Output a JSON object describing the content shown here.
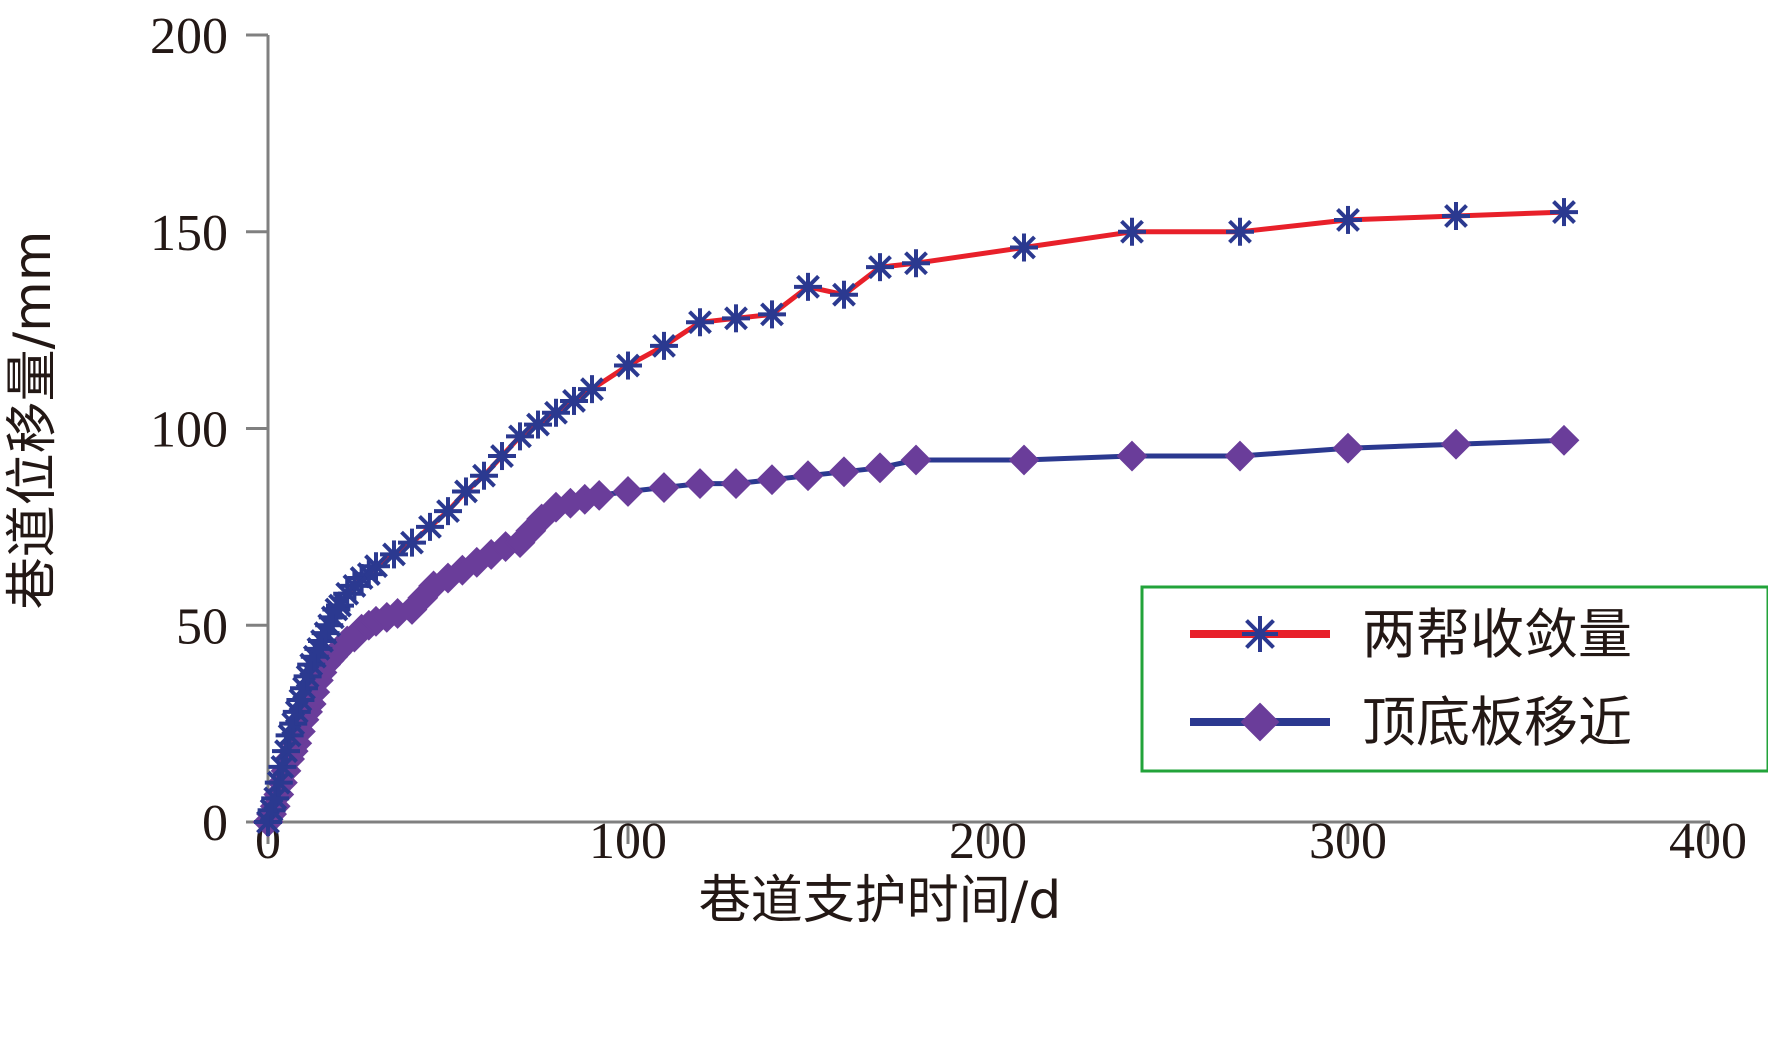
{
  "chart_data": {
    "type": "line",
    "xlabel": "巷道支护时间/d",
    "ylabel": "巷道位移量/mm",
    "xlim": [
      0,
      400
    ],
    "ylim": [
      0,
      200
    ],
    "xticks": [
      0,
      100,
      200,
      300,
      400
    ],
    "yticks": [
      0,
      50,
      100,
      150,
      200
    ],
    "grid": false,
    "legend_position": "bottom-right",
    "series": [
      {
        "name": "两帮收敛量",
        "line_color": "#e8202a",
        "marker": "star",
        "marker_color": "#2b3990",
        "x": [
          0,
          1,
          2,
          3,
          4,
          5,
          6,
          7,
          8,
          9,
          10,
          11,
          12,
          13,
          14,
          15,
          16,
          17,
          18,
          19,
          20,
          22,
          24,
          26,
          28,
          30,
          35,
          40,
          45,
          50,
          55,
          60,
          65,
          70,
          75,
          80,
          85,
          90,
          100,
          110,
          120,
          130,
          140,
          150,
          160,
          170,
          180,
          210,
          240,
          270,
          300,
          330,
          360
        ],
        "y": [
          0,
          3,
          6,
          10,
          14,
          18,
          22,
          25,
          28,
          31,
          34,
          37,
          40,
          42,
          44,
          46,
          48,
          50,
          52,
          54,
          55,
          58,
          60,
          62,
          63,
          65,
          68,
          71,
          75,
          79,
          84,
          88,
          93,
          98,
          101,
          104,
          107,
          110,
          116,
          121,
          127,
          128,
          129,
          136,
          134,
          141,
          142,
          146,
          150,
          150,
          153,
          154,
          155
        ]
      },
      {
        "name": "顶底板移近",
        "line_color": "#2b3990",
        "marker": "diamond",
        "marker_color": "#6a3d9a",
        "x": [
          0,
          1,
          2,
          3,
          4,
          5,
          6,
          7,
          8,
          9,
          10,
          11,
          12,
          13,
          14,
          15,
          16,
          17,
          18,
          19,
          20,
          22,
          24,
          26,
          28,
          30,
          33,
          36,
          40,
          43,
          46,
          50,
          54,
          58,
          62,
          66,
          70,
          73,
          76,
          80,
          84,
          88,
          92,
          100,
          110,
          120,
          130,
          140,
          150,
          160,
          170,
          180,
          210,
          240,
          270,
          300,
          330,
          360
        ],
        "y": [
          0,
          2,
          4,
          7,
          10,
          13,
          16,
          18,
          20,
          23,
          26,
          28,
          30,
          33,
          36,
          38,
          40,
          41,
          42,
          43,
          44,
          46,
          47,
          49,
          50,
          51,
          52,
          53,
          54,
          57,
          60,
          62,
          64,
          66,
          68,
          70,
          71,
          74,
          77,
          80,
          81,
          82,
          83,
          84,
          85,
          86,
          86,
          87,
          88,
          89,
          90,
          92,
          92,
          93,
          93,
          95,
          96,
          97
        ]
      }
    ]
  }
}
